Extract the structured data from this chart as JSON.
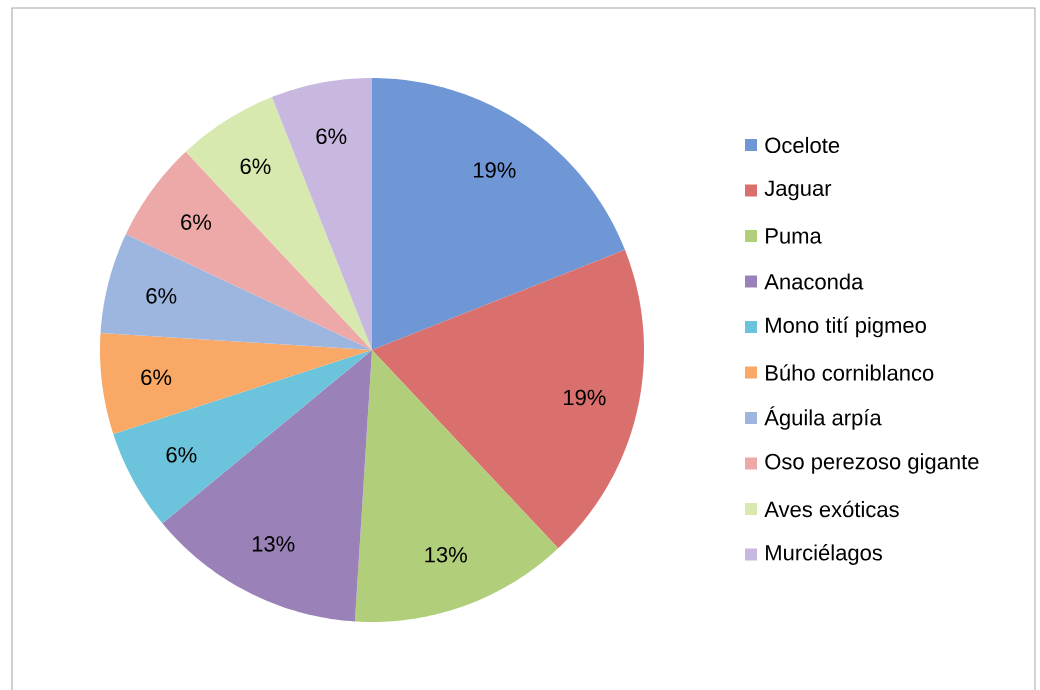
{
  "chart_data": {
    "type": "pie",
    "categories": [
      "Ocelote",
      "Jaguar",
      "Puma",
      "Anaconda",
      "Mono tití pigmeo",
      "Búho corniblanco",
      "Águila arpía",
      "Oso perezoso gigante",
      "Aves exóticas",
      "Murciélagos"
    ],
    "values": [
      19,
      19,
      13,
      13,
      6,
      6,
      6,
      6,
      6,
      6
    ],
    "value_labels": [
      "19%",
      "19%",
      "13%",
      "13%",
      "6%",
      "6%",
      "6%",
      "6%",
      "6%",
      "6%"
    ],
    "colors": [
      "#6f97d6",
      "#d9706e",
      "#b1ce7a",
      "#9a82b8",
      "#6cc3dc",
      "#f9a866",
      "#9cb6e0",
      "#eca9a8",
      "#d8e9b0",
      "#c8b8e0"
    ],
    "legend": "right"
  }
}
